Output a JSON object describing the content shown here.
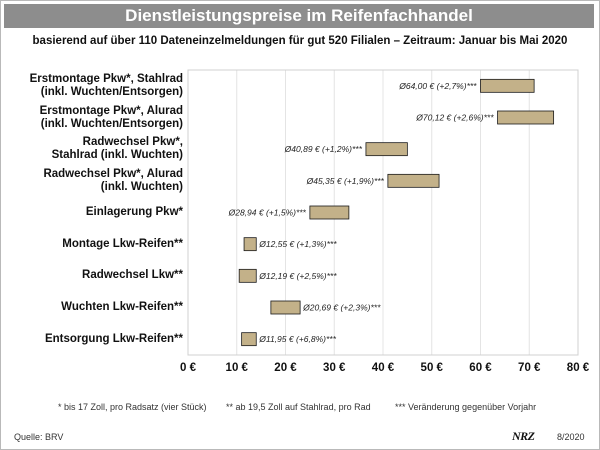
{
  "header": {
    "title": "Dienstleistungspreise im Reifenfachhandel",
    "subtitle": "basierend auf über 110 Dateneinzelmeldungen für gut 520 Filialen – Zeitraum: Januar bis Mai 2020"
  },
  "colors": {
    "bar_fill": "#c3b189",
    "bar_stroke": "#1a1a1a",
    "title_bg": "#8d8d8d",
    "grid": "#e4e4e4"
  },
  "chart_data": {
    "type": "bar",
    "orientation": "horizontal",
    "categories": [
      [
        "Erstmontage Pkw*, Stahlrad",
        "(inkl. Wuchten/Entsorgen)"
      ],
      [
        "Erstmontage Pkw*, Alurad",
        "(inkl. Wuchten/Entsorgen)"
      ],
      [
        "Radwechsel Pkw*,",
        "Stahlrad (inkl. Wuchten)"
      ],
      [
        "Radwechsel Pkw*, Alurad",
        "(inkl. Wuchten)"
      ],
      [
        "Einlagerung Pkw*"
      ],
      [
        "Montage Lkw-Reifen**"
      ],
      [
        "Radwechsel Lkw**"
      ],
      [
        "Wuchten Lkw-Reifen**"
      ],
      [
        "Entsorgung Lkw-Reifen**"
      ]
    ],
    "ranges": [
      [
        60,
        71
      ],
      [
        63.5,
        75
      ],
      [
        36.5,
        45
      ],
      [
        41,
        51.5
      ],
      [
        25,
        33
      ],
      [
        11.5,
        14
      ],
      [
        10.5,
        14
      ],
      [
        17,
        23
      ],
      [
        11,
        14
      ]
    ],
    "labels": [
      "Ø64,00 € (+2,7%)***",
      "Ø70,12 € (+2,6%)***",
      "Ø40,89 € (+1,2%)***",
      "Ø45,35 € (+1,9%)***",
      "Ø28,94 € (+1,5%)***",
      "Ø12,55 € (+1,3%)***",
      "Ø12,19 € (+2,5%)***",
      "Ø20,69 € (+2,3%)***",
      "Ø11,95 € (+6,8%)***"
    ],
    "xlim": [
      0,
      80
    ],
    "xticks": [
      "0 €",
      "10 €",
      "20 €",
      "30 €",
      "40 €",
      "50 €",
      "60 €",
      "70 €",
      "80 €"
    ],
    "grid": true
  },
  "footnotes": [
    "* bis 17 Zoll, pro Radsatz (vier Stück)",
    "** ab 19,5 Zoll auf Stahlrad, pro Rad",
    "*** Veränderung gegenüber Vorjahr"
  ],
  "source": "Quelle: BRV",
  "logo": "NRZ",
  "date": "8/2020"
}
